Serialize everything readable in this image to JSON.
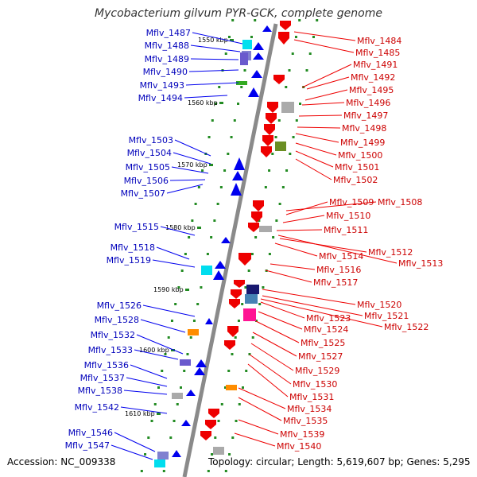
{
  "title": "Mycobacterium gilvum PYR-GCK, complete genome",
  "footer": {
    "accession": "Accession: NC_009338",
    "summary": "Topology: circular; Length: 5,619,607 bp; Genes: 5,295"
  },
  "colors": {
    "forward_gene": "#0000ee",
    "reverse_gene": "#ee0000",
    "backbone": "#888888",
    "tick": "#228b22",
    "left_label": "#0000bb",
    "right_label": "#cc0000"
  },
  "ruler": [
    "1550 kbp",
    "1560 kbp",
    "1570 kbp",
    "1580 kbp",
    "1590 kbp",
    "1600 kbp",
    "1610 kbp"
  ],
  "left_labels": [
    "Mflv_1487",
    "Mflv_1488",
    "Mflv_1489",
    "Mflv_1490",
    "Mflv_1493",
    "Mflv_1494",
    "Mflv_1503",
    "Mflv_1504",
    "Mflv_1505",
    "Mflv_1506",
    "Mflv_1507",
    "Mflv_1515",
    "Mflv_1518",
    "Mflv_1519",
    "Mflv_1526",
    "Mflv_1528",
    "Mflv_1532",
    "Mflv_1533",
    "Mflv_1536",
    "Mflv_1537",
    "Mflv_1538",
    "Mflv_1542",
    "Mflv_1546",
    "Mflv_1547"
  ],
  "right_labels": [
    "Mflv_1484",
    "Mflv_1485",
    "Mflv_1491",
    "Mflv_1492",
    "Mflv_1495",
    "Mflv_1496",
    "Mflv_1497",
    "Mflv_1498",
    "Mflv_1499",
    "Mflv_1500",
    "Mflv_1501",
    "Mflv_1502",
    "Mflv_1509",
    "Mflv_1508",
    "Mflv_1510",
    "Mflv_1511",
    "Mflv_1512",
    "Mflv_1514",
    "Mflv_1513",
    "Mflv_1516",
    "Mflv_1517",
    "Mflv_1520",
    "Mflv_1521",
    "Mflv_1523",
    "Mflv_1522",
    "Mflv_1524",
    "Mflv_1525",
    "Mflv_1527",
    "Mflv_1529",
    "Mflv_1530",
    "Mflv_1531",
    "Mflv_1534",
    "Mflv_1535",
    "Mflv_1539",
    "Mflv_1540"
  ]
}
